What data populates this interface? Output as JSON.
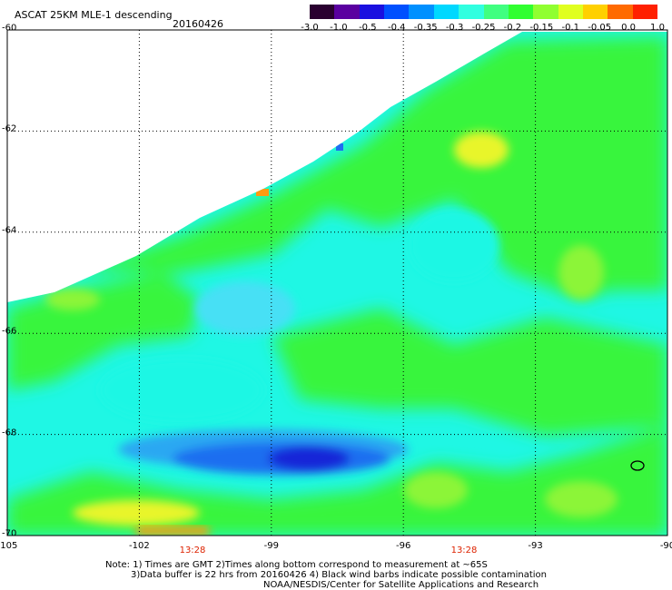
{
  "header": {
    "title": "ASCAT 25KM MLE-1 descending",
    "date": "20160426"
  },
  "colorbar": {
    "colors": [
      "#2a0030",
      "#5a00a0",
      "#1a10e0",
      "#0050ff",
      "#0090ff",
      "#00d8ff",
      "#30ffe0",
      "#40ff80",
      "#30ff30",
      "#90ff30",
      "#e0ff20",
      "#ffd000",
      "#ff6a00",
      "#ff2000"
    ],
    "labels": [
      "-3.0",
      "-1.0",
      "-0.5",
      "-0.4",
      "-0.35",
      "-0.3",
      "-0.25",
      "-0.2",
      "-0.15",
      "-0.1",
      "-0.05",
      "0.0",
      "1.0"
    ]
  },
  "map": {
    "lon_range": [
      -105,
      -90
    ],
    "lat_range": [
      -70,
      -60
    ],
    "x_ticks": [
      "-105",
      "-102",
      "-99",
      "-96",
      "-93",
      "-90"
    ],
    "y_ticks": [
      "-60",
      "-62",
      "-64",
      "-66",
      "-68",
      "-70"
    ],
    "pass_times": [
      "13:28",
      "13:28"
    ],
    "colors": {
      "background_swath": "#1ff7e4",
      "green": "#38f53e",
      "light_green": "#8cf537",
      "yellow": "#e8f52a",
      "blue": "#1f6ef0",
      "dark_blue": "#1626d8",
      "mid_blue": "#2aa8f2",
      "light_cyan": "#46e0f5",
      "orange": "#ff9a10"
    }
  },
  "notes": {
    "line1": "Note: 1) Times are GMT 2)Times along bottom correspond to measurement at ~65S",
    "line2": "3)Data buffer is 22 hrs from 20160426 4) Black wind barbs indicate possible contamination",
    "line3": "NOAA/NESDIS/Center for Satellite Applications and Research"
  }
}
